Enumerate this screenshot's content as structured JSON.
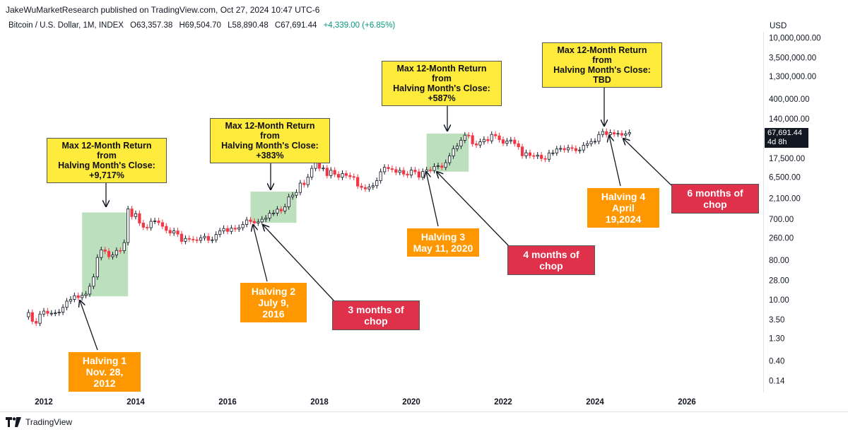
{
  "header": {
    "published": "JakeWuMarketResearch published on TradingView.com, Oct 27, 2024 10:47 UTC-6"
  },
  "symbol": {
    "name": "Bitcoin / U.S. Dollar, 1M, INDEX",
    "open": "O63,357.38",
    "high": "H69,504.70",
    "low": "L58,890.48",
    "close": "C67,691.44",
    "change": "+4,339.00 (+6.85%)"
  },
  "currency": "USD",
  "last_price": {
    "value": "67,691.44",
    "countdown": "4d 8h"
  },
  "footer": {
    "brand": "TradingView"
  },
  "annotations": {
    "return1": {
      "line1": "Max 12-Month Return from",
      "line2": "Halving Month's Close:",
      "line3": "+9,717%"
    },
    "return2": {
      "line1": "Max 12-Month Return from",
      "line2": "Halving Month's Close:",
      "line3": "+383%"
    },
    "return3": {
      "line1": "Max 12-Month Return from",
      "line2": "Halving Month's Close:",
      "line3": "+587%"
    },
    "return4": {
      "line1": "Max 12-Month Return from",
      "line2": "Halving Month's Close:",
      "line3": "TBD"
    },
    "halving1": {
      "line1": "Halving 1",
      "line2": "Nov. 28, 2012"
    },
    "halving2": {
      "line1": "Halving 2",
      "line2": "July 9, 2016"
    },
    "halving3": {
      "line1": "Halving 3",
      "line2": "May 11, 2020"
    },
    "halving4": {
      "line1": "Halving 4",
      "line2": "April 19,2024"
    },
    "chop2": "3 months of chop",
    "chop3": "4 months of chop",
    "chop4": "6 months of chop"
  },
  "colors": {
    "up": "#ffffff",
    "up_border": "#131722",
    "down": "#f23645",
    "highlight": "#a5d6a7",
    "note_yellow": "#ffeb3b",
    "note_orange": "#ff9800",
    "note_red": "#e0314b"
  },
  "chart_data": {
    "type": "candlestick",
    "x_ticks": [
      "2012",
      "2014",
      "2016",
      "2018",
      "2020",
      "2022",
      "2024",
      "2026"
    ],
    "y_ticks": [
      "10,000,000.00",
      "3,500,000.00",
      "1,300,000.00",
      "400,000.00",
      "140,000.00",
      "17,500.00",
      "6,500.00",
      "2,100.00",
      "700.00",
      "260.00",
      "80.00",
      "28.00",
      "10.00",
      "3.50",
      "1.30",
      "0.40",
      "0.14"
    ],
    "y_tick_values": [
      10000000,
      3500000,
      1300000,
      400000,
      140000,
      17500,
      6500,
      2100,
      700,
      260,
      80,
      28,
      10,
      3.5,
      1.3,
      0.4,
      0.14
    ],
    "y_scale": "log",
    "grid": false,
    "halving_dates": [
      "2012-11",
      "2016-07",
      "2020-05",
      "2024-04"
    ],
    "highlight_ranges": [
      {
        "from": "2012-11",
        "to": "2013-11",
        "low": 12,
        "high": 1000
      },
      {
        "from": "2016-07",
        "to": "2017-07",
        "low": 580,
        "high": 3000
      },
      {
        "from": "2020-05",
        "to": "2021-04",
        "low": 8600,
        "high": 64000
      }
    ],
    "monthly_closes": [
      {
        "t": "2011-09",
        "c": 5.1
      },
      {
        "t": "2011-10",
        "c": 3.2
      },
      {
        "t": "2011-11",
        "c": 2.9
      },
      {
        "t": "2011-12",
        "c": 4.7
      },
      {
        "t": "2012-01",
        "c": 5.5
      },
      {
        "t": "2012-02",
        "c": 4.9
      },
      {
        "t": "2012-03",
        "c": 4.9
      },
      {
        "t": "2012-04",
        "c": 5.0
      },
      {
        "t": "2012-05",
        "c": 5.2
      },
      {
        "t": "2012-06",
        "c": 6.7
      },
      {
        "t": "2012-07",
        "c": 9.3
      },
      {
        "t": "2012-08",
        "c": 10.2
      },
      {
        "t": "2012-09",
        "c": 12.4
      },
      {
        "t": "2012-10",
        "c": 11.2
      },
      {
        "t": "2012-11",
        "c": 12.6
      },
      {
        "t": "2012-12",
        "c": 13.5
      },
      {
        "t": "2013-01",
        "c": 20.4
      },
      {
        "t": "2013-02",
        "c": 33.4
      },
      {
        "t": "2013-03",
        "c": 93
      },
      {
        "t": "2013-04",
        "c": 139
      },
      {
        "t": "2013-05",
        "c": 129
      },
      {
        "t": "2013-06",
        "c": 97
      },
      {
        "t": "2013-07",
        "c": 106
      },
      {
        "t": "2013-08",
        "c": 135
      },
      {
        "t": "2013-09",
        "c": 133
      },
      {
        "t": "2013-10",
        "c": 204
      },
      {
        "t": "2013-11",
        "c": 1205
      },
      {
        "t": "2013-12",
        "c": 805
      },
      {
        "t": "2014-01",
        "c": 938
      },
      {
        "t": "2014-02",
        "c": 573
      },
      {
        "t": "2014-03",
        "c": 457
      },
      {
        "t": "2014-04",
        "c": 447
      },
      {
        "t": "2014-05",
        "c": 628
      },
      {
        "t": "2014-06",
        "c": 640
      },
      {
        "t": "2014-07",
        "c": 586
      },
      {
        "t": "2014-08",
        "c": 482
      },
      {
        "t": "2014-09",
        "c": 388
      },
      {
        "t": "2014-10",
        "c": 338
      },
      {
        "t": "2014-11",
        "c": 378
      },
      {
        "t": "2014-12",
        "c": 320
      },
      {
        "t": "2015-01",
        "c": 217
      },
      {
        "t": "2015-02",
        "c": 254
      },
      {
        "t": "2015-03",
        "c": 244
      },
      {
        "t": "2015-04",
        "c": 236
      },
      {
        "t": "2015-05",
        "c": 230
      },
      {
        "t": "2015-06",
        "c": 263
      },
      {
        "t": "2015-07",
        "c": 284
      },
      {
        "t": "2015-08",
        "c": 230
      },
      {
        "t": "2015-09",
        "c": 236
      },
      {
        "t": "2015-10",
        "c": 314
      },
      {
        "t": "2015-11",
        "c": 377
      },
      {
        "t": "2015-12",
        "c": 430
      },
      {
        "t": "2016-01",
        "c": 368
      },
      {
        "t": "2016-02",
        "c": 437
      },
      {
        "t": "2016-03",
        "c": 416
      },
      {
        "t": "2016-04",
        "c": 448
      },
      {
        "t": "2016-05",
        "c": 531
      },
      {
        "t": "2016-06",
        "c": 673
      },
      {
        "t": "2016-07",
        "c": 624
      },
      {
        "t": "2016-08",
        "c": 573
      },
      {
        "t": "2016-09",
        "c": 608
      },
      {
        "t": "2016-10",
        "c": 700
      },
      {
        "t": "2016-11",
        "c": 742
      },
      {
        "t": "2016-12",
        "c": 963
      },
      {
        "t": "2017-01",
        "c": 970
      },
      {
        "t": "2017-02",
        "c": 1190
      },
      {
        "t": "2017-03",
        "c": 1080
      },
      {
        "t": "2017-04",
        "c": 1348
      },
      {
        "t": "2017-05",
        "c": 2286
      },
      {
        "t": "2017-06",
        "c": 2480
      },
      {
        "t": "2017-07",
        "c": 2875
      },
      {
        "t": "2017-08",
        "c": 4703
      },
      {
        "t": "2017-09",
        "c": 4338
      },
      {
        "t": "2017-10",
        "c": 6468
      },
      {
        "t": "2017-11",
        "c": 10233
      },
      {
        "t": "2017-12",
        "c": 14156
      },
      {
        "t": "2018-01",
        "c": 10221
      },
      {
        "t": "2018-02",
        "c": 10397
      },
      {
        "t": "2018-03",
        "c": 6973
      },
      {
        "t": "2018-04",
        "c": 9240
      },
      {
        "t": "2018-05",
        "c": 7494
      },
      {
        "t": "2018-06",
        "c": 6404
      },
      {
        "t": "2018-07",
        "c": 7780
      },
      {
        "t": "2018-08",
        "c": 7037
      },
      {
        "t": "2018-09",
        "c": 6625
      },
      {
        "t": "2018-10",
        "c": 6371
      },
      {
        "t": "2018-11",
        "c": 4017
      },
      {
        "t": "2018-12",
        "c": 3742
      },
      {
        "t": "2019-01",
        "c": 3457
      },
      {
        "t": "2019-02",
        "c": 3854
      },
      {
        "t": "2019-03",
        "c": 4105
      },
      {
        "t": "2019-04",
        "c": 5350
      },
      {
        "t": "2019-05",
        "c": 8574
      },
      {
        "t": "2019-06",
        "c": 10817
      },
      {
        "t": "2019-07",
        "c": 10085
      },
      {
        "t": "2019-08",
        "c": 9631
      },
      {
        "t": "2019-09",
        "c": 8293
      },
      {
        "t": "2019-10",
        "c": 9199
      },
      {
        "t": "2019-11",
        "c": 7569
      },
      {
        "t": "2019-12",
        "c": 7193
      },
      {
        "t": "2020-01",
        "c": 9350
      },
      {
        "t": "2020-02",
        "c": 8544
      },
      {
        "t": "2020-03",
        "c": 6424
      },
      {
        "t": "2020-04",
        "c": 8658
      },
      {
        "t": "2020-05",
        "c": 9461
      },
      {
        "t": "2020-06",
        "c": 9137
      },
      {
        "t": "2020-07",
        "c": 11323
      },
      {
        "t": "2020-08",
        "c": 11680
      },
      {
        "t": "2020-09",
        "c": 10784
      },
      {
        "t": "2020-10",
        "c": 13804
      },
      {
        "t": "2020-11",
        "c": 19700
      },
      {
        "t": "2020-12",
        "c": 28990
      },
      {
        "t": "2021-01",
        "c": 33114
      },
      {
        "t": "2021-02",
        "c": 45137
      },
      {
        "t": "2021-03",
        "c": 58918
      },
      {
        "t": "2021-04",
        "c": 57750
      },
      {
        "t": "2021-05",
        "c": 37332
      },
      {
        "t": "2021-06",
        "c": 35041
      },
      {
        "t": "2021-07",
        "c": 41626
      },
      {
        "t": "2021-08",
        "c": 47166
      },
      {
        "t": "2021-09",
        "c": 43790
      },
      {
        "t": "2021-10",
        "c": 61318
      },
      {
        "t": "2021-11",
        "c": 57005
      },
      {
        "t": "2021-12",
        "c": 46306
      },
      {
        "t": "2022-01",
        "c": 38483
      },
      {
        "t": "2022-02",
        "c": 43193
      },
      {
        "t": "2022-03",
        "c": 45538
      },
      {
        "t": "2022-04",
        "c": 37714
      },
      {
        "t": "2022-05",
        "c": 31792
      },
      {
        "t": "2022-06",
        "c": 19784
      },
      {
        "t": "2022-07",
        "c": 23336
      },
      {
        "t": "2022-08",
        "c": 20050
      },
      {
        "t": "2022-09",
        "c": 19431
      },
      {
        "t": "2022-10",
        "c": 20495
      },
      {
        "t": "2022-11",
        "c": 17168
      },
      {
        "t": "2022-12",
        "c": 16548
      },
      {
        "t": "2023-01",
        "c": 23139
      },
      {
        "t": "2023-02",
        "c": 23147
      },
      {
        "t": "2023-03",
        "c": 28478
      },
      {
        "t": "2023-04",
        "c": 29268
      },
      {
        "t": "2023-05",
        "c": 27220
      },
      {
        "t": "2023-06",
        "c": 30477
      },
      {
        "t": "2023-07",
        "c": 29230
      },
      {
        "t": "2023-08",
        "c": 25940
      },
      {
        "t": "2023-09",
        "c": 26968
      },
      {
        "t": "2023-10",
        "c": 34668
      },
      {
        "t": "2023-11",
        "c": 37713
      },
      {
        "t": "2023-12",
        "c": 42265
      },
      {
        "t": "2024-01",
        "c": 42582
      },
      {
        "t": "2024-02",
        "c": 61198
      },
      {
        "t": "2024-03",
        "c": 71333
      },
      {
        "t": "2024-04",
        "c": 60636
      },
      {
        "t": "2024-05",
        "c": 67491
      },
      {
        "t": "2024-06",
        "c": 62678
      },
      {
        "t": "2024-07",
        "c": 64619
      },
      {
        "t": "2024-08",
        "c": 58969
      },
      {
        "t": "2024-09",
        "c": 63357
      },
      {
        "t": "2024-10",
        "c": 67691
      }
    ]
  }
}
